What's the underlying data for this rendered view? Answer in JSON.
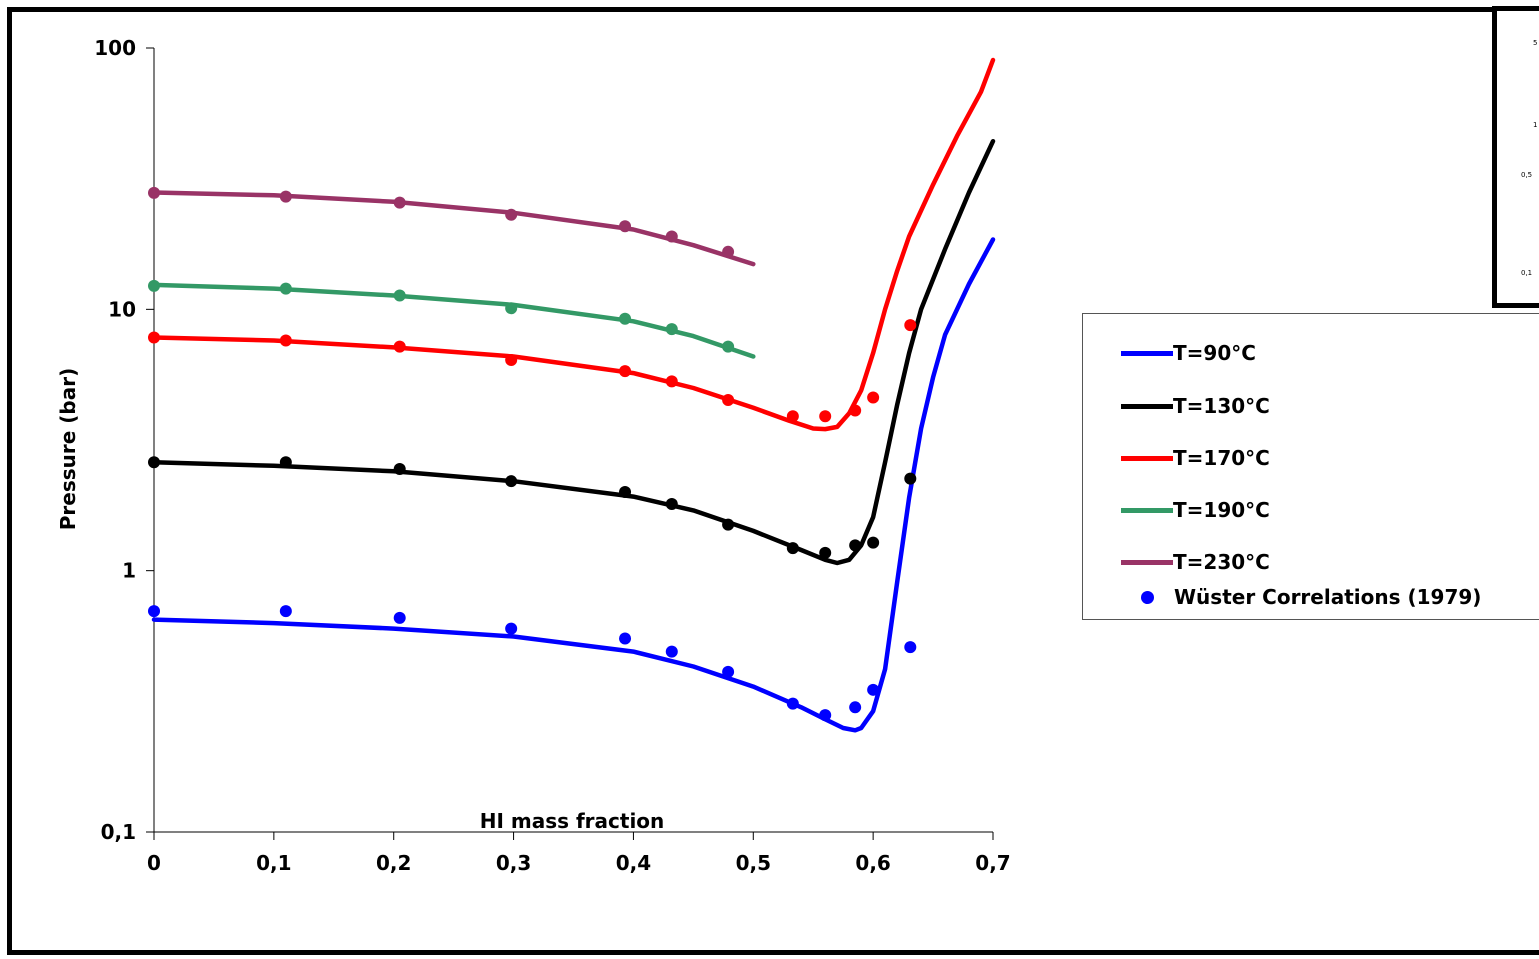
{
  "chart_data": {
    "type": "line",
    "xlabel": "HI mass fraction",
    "ylabel": "Pressure (bar)",
    "xlim": [
      0,
      0.7
    ],
    "ylim": [
      0.1,
      100
    ],
    "yscale": "log",
    "x_ticks": [
      0,
      0.1,
      0.2,
      0.3,
      0.4,
      0.5,
      0.6,
      0.7
    ],
    "x_tick_labels": [
      "0",
      "0,1",
      "0,2",
      "0,3",
      "0,4",
      "0,5",
      "0,6",
      "0,7"
    ],
    "y_ticks": [
      0.1,
      1,
      10,
      100
    ],
    "y_tick_labels": [
      "0,1",
      "1",
      "10",
      "100"
    ],
    "grid": false,
    "legend_position": "right",
    "series": [
      {
        "name": "T=90°C",
        "color": "#0000ff",
        "x": [
          0,
          0.1,
          0.2,
          0.3,
          0.4,
          0.45,
          0.5,
          0.54,
          0.56,
          0.575,
          0.585,
          0.59,
          0.6,
          0.61,
          0.62,
          0.63,
          0.64,
          0.65,
          0.66,
          0.68,
          0.7
        ],
        "y": [
          0.65,
          0.63,
          0.6,
          0.56,
          0.49,
          0.43,
          0.36,
          0.3,
          0.27,
          0.25,
          0.245,
          0.25,
          0.29,
          0.42,
          0.9,
          1.9,
          3.5,
          5.5,
          8,
          12.5,
          18.5
        ]
      },
      {
        "name": "T=130°C",
        "color": "#000000",
        "x": [
          0,
          0.1,
          0.2,
          0.3,
          0.4,
          0.45,
          0.5,
          0.54,
          0.56,
          0.57,
          0.58,
          0.59,
          0.6,
          0.61,
          0.62,
          0.63,
          0.64,
          0.66,
          0.68,
          0.7
        ],
        "y": [
          2.6,
          2.52,
          2.4,
          2.2,
          1.92,
          1.7,
          1.42,
          1.2,
          1.1,
          1.07,
          1.1,
          1.25,
          1.6,
          2.6,
          4.3,
          6.8,
          10,
          17,
          28,
          44
        ]
      },
      {
        "name": "T=170°C",
        "color": "#ff0000",
        "x": [
          0,
          0.1,
          0.2,
          0.3,
          0.4,
          0.45,
          0.5,
          0.53,
          0.55,
          0.56,
          0.57,
          0.58,
          0.59,
          0.6,
          0.61,
          0.62,
          0.63,
          0.65,
          0.67,
          0.69,
          0.7
        ],
        "y": [
          7.8,
          7.6,
          7.15,
          6.6,
          5.7,
          5.0,
          4.2,
          3.75,
          3.5,
          3.48,
          3.55,
          4.0,
          4.9,
          6.8,
          10,
          14,
          19,
          30,
          46,
          68,
          90
        ]
      },
      {
        "name": "T=190°C",
        "color": "#339966",
        "x": [
          0,
          0.1,
          0.2,
          0.3,
          0.4,
          0.45,
          0.5
        ],
        "y": [
          12.4,
          12.0,
          11.3,
          10.4,
          9.0,
          7.9,
          6.6
        ]
      },
      {
        "name": "T=230°C",
        "color": "#993366",
        "x": [
          0,
          0.1,
          0.2,
          0.3,
          0.4,
          0.45,
          0.5
        ],
        "y": [
          28,
          27.3,
          25.8,
          23.4,
          20.2,
          17.6,
          14.9
        ]
      }
    ],
    "points": {
      "name": "Wüster Correlations (1979)",
      "sets": [
        {
          "color": "#0000ff",
          "x": [
            0,
            0.11,
            0.205,
            0.298,
            0.393,
            0.432,
            0.479,
            0.533,
            0.56,
            0.585,
            0.6,
            0.631
          ],
          "y": [
            0.7,
            0.7,
            0.66,
            0.6,
            0.55,
            0.49,
            0.41,
            0.31,
            0.28,
            0.3,
            0.35,
            0.51
          ]
        },
        {
          "color": "#000000",
          "x": [
            0,
            0.11,
            0.205,
            0.298,
            0.393,
            0.432,
            0.479,
            0.533,
            0.56,
            0.585,
            0.6,
            0.631
          ],
          "y": [
            2.6,
            2.6,
            2.45,
            2.2,
            2.0,
            1.8,
            1.5,
            1.22,
            1.17,
            1.25,
            1.28,
            2.25
          ]
        },
        {
          "color": "#ff0000",
          "x": [
            0,
            0.11,
            0.205,
            0.298,
            0.393,
            0.432,
            0.479,
            0.533,
            0.56,
            0.585,
            0.6,
            0.631
          ],
          "y": [
            7.8,
            7.6,
            7.2,
            6.4,
            5.8,
            5.3,
            4.5,
            3.9,
            3.9,
            4.1,
            4.6,
            8.7
          ]
        },
        {
          "color": "#339966",
          "x": [
            0,
            0.11,
            0.205,
            0.298,
            0.393,
            0.432,
            0.479
          ],
          "y": [
            12.3,
            12.0,
            11.3,
            10.1,
            9.2,
            8.4,
            7.2
          ]
        },
        {
          "color": "#993366",
          "x": [
            0,
            0.11,
            0.205,
            0.298,
            0.393,
            0.432,
            0.479
          ],
          "y": [
            27.9,
            27.0,
            25.6,
            23.0,
            20.8,
            19.0,
            16.6
          ]
        }
      ]
    }
  },
  "inset": {
    "labels": [
      "5",
      "1",
      "0,5",
      "0,1"
    ]
  }
}
